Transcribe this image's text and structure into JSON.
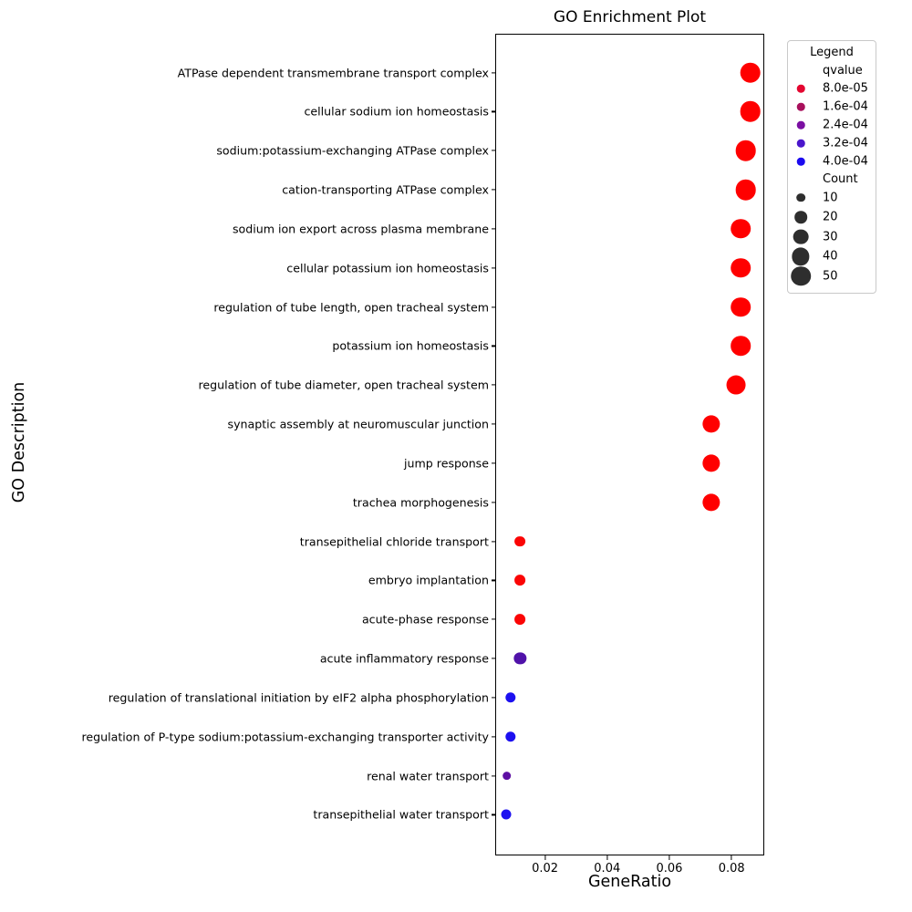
{
  "chart_data": {
    "type": "scatter",
    "title": "GO Enrichment Plot",
    "xlabel": "GeneRatio",
    "ylabel": "GO Description",
    "xlim": [
      0.004,
      0.0905
    ],
    "grid": false,
    "legend_position": "outside-upper-right",
    "xticks": [
      {
        "value": 0.02,
        "label": "0.02"
      },
      {
        "value": 0.04,
        "label": "0.04"
      },
      {
        "value": 0.06,
        "label": "0.06"
      },
      {
        "value": 0.08,
        "label": "0.08"
      }
    ],
    "legend": {
      "title": "Legend",
      "qvalue_title": "qvalue",
      "qvalue_entries": [
        {
          "label": "8.0e-05",
          "color": "#e40630"
        },
        {
          "label": "1.6e-04",
          "color": "#a8105c"
        },
        {
          "label": "2.4e-04",
          "color": "#7b0fa2"
        },
        {
          "label": "3.2e-04",
          "color": "#4a16cc"
        },
        {
          "label": "4.0e-04",
          "color": "#1b0af0"
        }
      ],
      "count_title": "Count",
      "count_entries": [
        {
          "label": "10",
          "count": 10
        },
        {
          "label": "20",
          "count": 20
        },
        {
          "label": "30",
          "count": 30
        },
        {
          "label": "40",
          "count": 40
        },
        {
          "label": "50",
          "count": 50
        }
      ],
      "count_dot_color": "#2e2e2e"
    },
    "points": [
      {
        "label": "ATPase dependent transmembrane transport complex",
        "gene_ratio": 0.086,
        "count": 55,
        "qvalue": 2e-05,
        "color": "#ff0000"
      },
      {
        "label": "cellular sodium ion homeostasis",
        "gene_ratio": 0.086,
        "count": 55,
        "qvalue": 2e-05,
        "color": "#ff0000"
      },
      {
        "label": "sodium:potassium-exchanging ATPase complex",
        "gene_ratio": 0.0845,
        "count": 55,
        "qvalue": 2e-05,
        "color": "#ff0000"
      },
      {
        "label": "cation-transporting ATPase complex",
        "gene_ratio": 0.0845,
        "count": 55,
        "qvalue": 2e-05,
        "color": "#ff0000"
      },
      {
        "label": "sodium ion export across plasma membrane",
        "gene_ratio": 0.083,
        "count": 50,
        "qvalue": 2e-05,
        "color": "#ff0000"
      },
      {
        "label": "cellular potassium ion homeostasis",
        "gene_ratio": 0.083,
        "count": 50,
        "qvalue": 2e-05,
        "color": "#ff0000"
      },
      {
        "label": "regulation of tube length, open tracheal system",
        "gene_ratio": 0.083,
        "count": 50,
        "qvalue": 2e-05,
        "color": "#ff0000"
      },
      {
        "label": "potassium ion homeostasis",
        "gene_ratio": 0.083,
        "count": 50,
        "qvalue": 2e-05,
        "color": "#ff0000"
      },
      {
        "label": "regulation of tube diameter, open tracheal system",
        "gene_ratio": 0.0815,
        "count": 47,
        "qvalue": 2e-05,
        "color": "#ff0000"
      },
      {
        "label": "synaptic assembly at neuromuscular junction",
        "gene_ratio": 0.0735,
        "count": 40,
        "qvalue": 2e-05,
        "color": "#ff0000"
      },
      {
        "label": "jump response",
        "gene_ratio": 0.0735,
        "count": 40,
        "qvalue": 2e-05,
        "color": "#ff0000"
      },
      {
        "label": "trachea morphogenesis",
        "gene_ratio": 0.0735,
        "count": 40,
        "qvalue": 2e-05,
        "color": "#ff0000"
      },
      {
        "label": "transepithelial chloride transport",
        "gene_ratio": 0.012,
        "count": 15,
        "qvalue": 4e-05,
        "color": "#fb0505"
      },
      {
        "label": "embryo implantation",
        "gene_ratio": 0.012,
        "count": 15,
        "qvalue": 4e-05,
        "color": "#fb0505"
      },
      {
        "label": "acute-phase response",
        "gene_ratio": 0.012,
        "count": 15,
        "qvalue": 4e-05,
        "color": "#fb0505"
      },
      {
        "label": "acute inflammatory response",
        "gene_ratio": 0.012,
        "count": 19,
        "qvalue": 0.00029,
        "color": "#5012a9"
      },
      {
        "label": "regulation of translational initiation by eIF2 alpha phosphorylation",
        "gene_ratio": 0.009,
        "count": 14,
        "qvalue": 0.00038,
        "color": "#1c10f0"
      },
      {
        "label": "regulation of P-type sodium:potassium-exchanging transporter activity",
        "gene_ratio": 0.009,
        "count": 14,
        "qvalue": 0.00038,
        "color": "#1c10f0"
      },
      {
        "label": "renal water transport",
        "gene_ratio": 0.0077,
        "count": 10,
        "qvalue": 0.00027,
        "color": "#5d0fa3"
      },
      {
        "label": "transepithelial water transport",
        "gene_ratio": 0.0075,
        "count": 13,
        "qvalue": 0.00038,
        "color": "#1c10f0"
      }
    ]
  }
}
